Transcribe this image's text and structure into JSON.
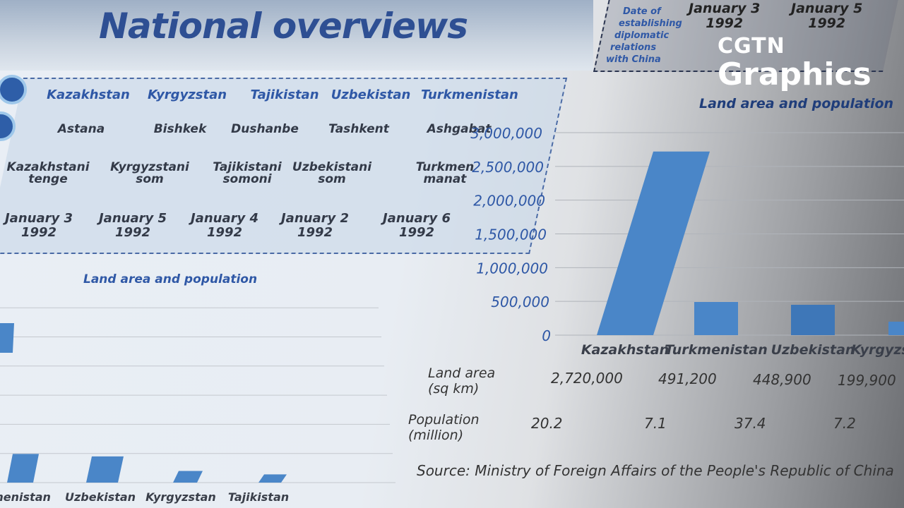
{
  "title": "National overviews",
  "table": {
    "countries": [
      "Kazakhstan",
      "Kyrgyzstan",
      "Tajikistan",
      "Uzbekistan",
      "Turkmenistan"
    ],
    "capitals": [
      "Astana",
      "Bishkek",
      "Dushanbe",
      "Tashkent",
      "Ashgabat"
    ],
    "currencies": [
      [
        "Kazakhstani",
        "tenge"
      ],
      [
        "Kyrgyzstani",
        "som"
      ],
      [
        "Tajikistani",
        "somoni"
      ],
      [
        "Uzbekistani",
        "som"
      ],
      [
        "Turkmen",
        "manat"
      ]
    ],
    "dates": [
      [
        "January 3",
        "1992"
      ],
      [
        "January 5",
        "1992"
      ],
      [
        "January 4",
        "1992"
      ],
      [
        "January 2",
        "1992"
      ],
      [
        "January 6",
        "1992"
      ]
    ],
    "diplomatic_label": [
      "Date of",
      "establishing",
      "diplomatic",
      "relations",
      "with China"
    ],
    "top_dates": [
      [
        "January 3",
        "1992"
      ],
      [
        "January 5",
        "1992"
      ]
    ]
  },
  "logo": {
    "line1": "CGTN",
    "line2": "Graphics"
  },
  "colors": {
    "bar": "#4a86c8",
    "title": "#2e4f93",
    "accent": "#2f58a6"
  },
  "chart_data": [
    {
      "type": "bar",
      "title": "Land area and population",
      "ylim": [
        0,
        3000000
      ],
      "grid": true,
      "yticks": [
        "0",
        "500,000",
        "1,000,000",
        "1,500,000",
        "2,000,000",
        "2,500,000",
        "3,000,000"
      ],
      "categories": [
        "Kazakhstan",
        "Turkmenistan",
        "Uzbekistan",
        "Kyrgyzstan"
      ],
      "values": [
        2720000,
        491200,
        448900,
        199900
      ],
      "land_area_label": [
        "Land area",
        "(sq km)"
      ],
      "land_area": [
        "2,720,000",
        "491,200",
        "448,900",
        "199,900"
      ],
      "population_label": [
        "Population",
        "(million)"
      ],
      "population": [
        "20.2",
        "7.1",
        "37.4",
        "7.2"
      ]
    },
    {
      "type": "bar",
      "title": "Land area and population",
      "ylim": [
        0,
        3000000
      ],
      "grid": true,
      "categories": [
        "Kazakhstan",
        "Turkmenistan",
        "Uzbekistan",
        "Kyrgyzstan",
        "Tajikistan"
      ],
      "category_labels": [
        "",
        "menistan",
        "Uzbekistan",
        "Kyrgyzstan",
        "Tajikistan"
      ],
      "values": [
        2720000,
        491200,
        448900,
        199900,
        140000
      ]
    }
  ],
  "source": "Source: Ministry of Foreign Affairs of the People's Republic of China"
}
